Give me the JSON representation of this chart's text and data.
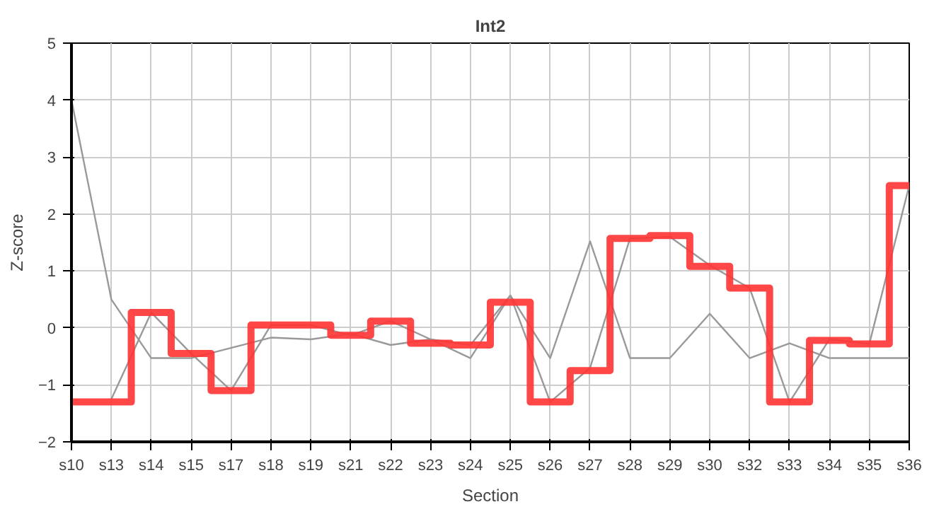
{
  "chart_data": {
    "type": "line",
    "title": "Int2",
    "xlabel": "Section",
    "ylabel": "Z-score",
    "categories": [
      "s10",
      "s13",
      "s14",
      "s15",
      "s17",
      "s18",
      "s19",
      "s21",
      "s22",
      "s23",
      "s24",
      "s25",
      "s26",
      "s27",
      "s28",
      "s29",
      "s30",
      "s32",
      "s33",
      "s34",
      "s35",
      "s36"
    ],
    "series": [
      {
        "color": "#999999",
        "values": [
          4.0,
          0.5,
          -0.53,
          -0.53,
          -0.35,
          -0.17,
          -0.2,
          -0.1,
          -0.3,
          -0.2,
          -0.53,
          0.57,
          -0.53,
          1.52,
          -0.53,
          -0.53,
          0.25,
          -0.53,
          -0.27,
          -0.53,
          -0.53,
          -0.53
        ]
      },
      {
        "color": "#999999",
        "values": [
          null,
          -1.25,
          0.27,
          -0.45,
          -1.1,
          0.05,
          0.05,
          -0.13,
          0.12,
          -0.2,
          -0.3,
          0.57,
          -1.3,
          -0.7,
          1.57,
          1.6,
          1.1,
          0.7,
          -1.3,
          -0.2,
          -0.28,
          2.5
        ]
      },
      {
        "type": "step",
        "color": "#ff3333",
        "values": [
          -1.3,
          -1.3,
          0.27,
          -0.45,
          -1.1,
          0.05,
          0.05,
          -0.13,
          0.12,
          -0.27,
          -0.3,
          0.45,
          -1.3,
          -0.75,
          1.57,
          1.62,
          1.08,
          0.7,
          -1.3,
          -0.22,
          -0.28,
          2.5
        ]
      }
    ],
    "ylim": [
      -2,
      5
    ],
    "yticks": [
      -2,
      -1,
      0,
      1,
      2,
      3,
      4,
      5
    ],
    "grid": true
  }
}
